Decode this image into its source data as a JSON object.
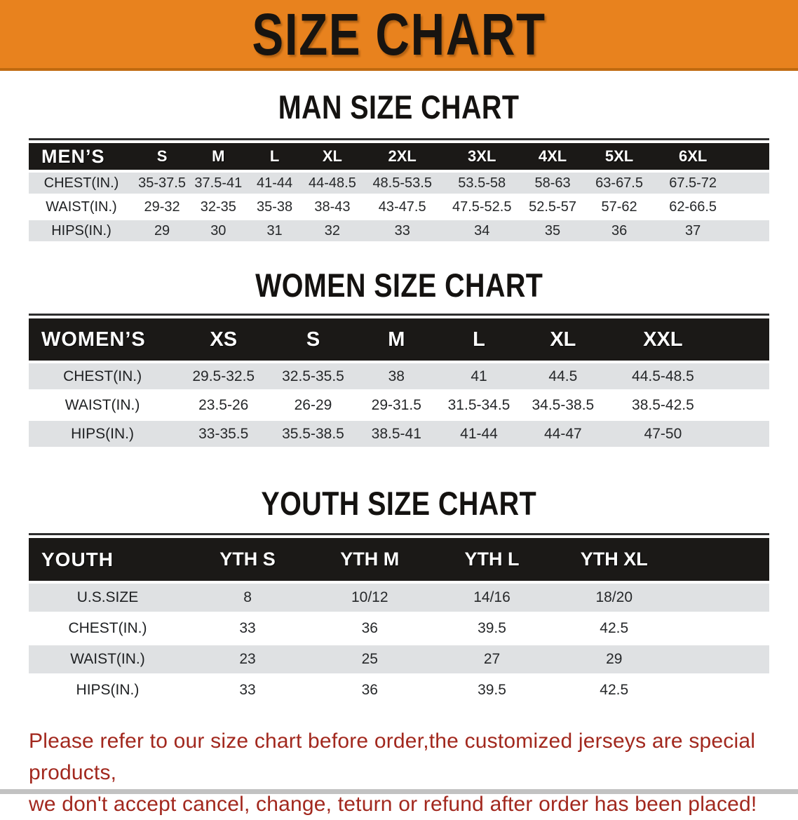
{
  "banner": {
    "title": "SIZE CHART",
    "bg_color": "#E8821E",
    "border_color": "#C06A10"
  },
  "sections": [
    {
      "heading": "MAN SIZE CHART",
      "corner": "MEN’S",
      "columns": [
        "S",
        "M",
        "L",
        "XL",
        "2XL",
        "3XL",
        "4XL",
        "5XL",
        "6XL"
      ],
      "rows": [
        {
          "label": "CHEST(IN.)",
          "values": [
            "35-37.5",
            "37.5-41",
            "41-44",
            "44-48.5",
            "48.5-53.5",
            "53.5-58",
            "58-63",
            "63-67.5",
            "67.5-72"
          ]
        },
        {
          "label": "WAIST(IN.)",
          "values": [
            "29-32",
            "32-35",
            "35-38",
            "38-43",
            "43-47.5",
            "47.5-52.5",
            "52.5-57",
            "57-62",
            "62-66.5"
          ]
        },
        {
          "label": "HIPS(IN.)",
          "values": [
            "29",
            "30",
            "31",
            "32",
            "33",
            "34",
            "35",
            "36",
            "37"
          ]
        }
      ]
    },
    {
      "heading": "WOMEN SIZE CHART",
      "corner": "WOMEN’S",
      "columns": [
        "XS",
        "S",
        "M",
        "L",
        "XL",
        "XXL"
      ],
      "rows": [
        {
          "label": "CHEST(IN.)",
          "values": [
            "29.5-32.5",
            "32.5-35.5",
            "38",
            "41",
            "44.5",
            "44.5-48.5"
          ]
        },
        {
          "label": "WAIST(IN.)",
          "values": [
            "23.5-26",
            "26-29",
            "29-31.5",
            "31.5-34.5",
            "34.5-38.5",
            "38.5-42.5"
          ]
        },
        {
          "label": "HIPS(IN.)",
          "values": [
            "33-35.5",
            "35.5-38.5",
            "38.5-41",
            "41-44",
            "44-47",
            "47-50"
          ]
        }
      ]
    },
    {
      "heading": "YOUTH SIZE CHART",
      "corner": "YOUTH",
      "columns": [
        "YTH S",
        "YTH M",
        "YTH L",
        "YTH XL"
      ],
      "rows": [
        {
          "label": "U.S.SIZE",
          "values": [
            "8",
            "10/12",
            "14/16",
            "18/20"
          ]
        },
        {
          "label": "CHEST(IN.)",
          "values": [
            "33",
            "36",
            "39.5",
            "42.5"
          ]
        },
        {
          "label": "WAIST(IN.)",
          "values": [
            "23",
            "25",
            "27",
            "29"
          ]
        },
        {
          "label": "HIPS(IN.)",
          "values": [
            "33",
            "36",
            "39.5",
            "42.5"
          ]
        }
      ]
    }
  ],
  "footer": {
    "line1": "Please refer to our size chart before order,the customized jerseys are special products,",
    "line2": "we don't accept cancel, change, teturn or refund after order has been placed!",
    "text_color": "#A2281E"
  },
  "colors": {
    "stripe_row": "#DFE1E3",
    "header_bar": "#1B1917"
  }
}
